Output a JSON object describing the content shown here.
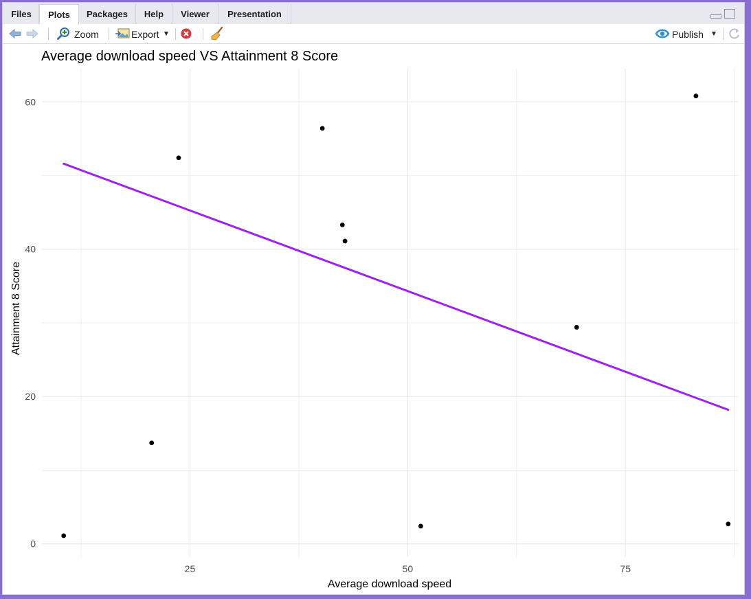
{
  "tabs": [
    {
      "label": "Files"
    },
    {
      "label": "Plots"
    },
    {
      "label": "Packages"
    },
    {
      "label": "Help"
    },
    {
      "label": "Viewer"
    },
    {
      "label": "Presentation"
    }
  ],
  "toolbar": {
    "zoom_label": "Zoom",
    "export_label": "Export",
    "publish_label": "Publish"
  },
  "icons": {
    "back": "back-arrow-icon",
    "forward": "forward-arrow-icon",
    "zoom": "zoom-icon",
    "export": "export-image-icon",
    "remove": "remove-plot-icon",
    "clear": "broom-icon",
    "publish": "publish-icon",
    "refresh": "refresh-icon"
  },
  "chart_data": {
    "type": "scatter",
    "title": "Average download speed VS Attainment 8 Score",
    "xlabel": "Average download speed",
    "ylabel": "Attainment 8 Score",
    "xlim": [
      8,
      88
    ],
    "ylim": [
      -1.8,
      64.5
    ],
    "x_ticks": [
      25,
      50,
      75
    ],
    "y_ticks": [
      0,
      20,
      40,
      60
    ],
    "grid": true,
    "points": [
      {
        "x": 10.5,
        "y": 1.1
      },
      {
        "x": 20.6,
        "y": 13.7
      },
      {
        "x": 23.7,
        "y": 52.4
      },
      {
        "x": 40.2,
        "y": 56.4
      },
      {
        "x": 42.5,
        "y": 43.3
      },
      {
        "x": 42.8,
        "y": 41.1
      },
      {
        "x": 51.5,
        "y": 2.4
      },
      {
        "x": 69.4,
        "y": 29.4
      },
      {
        "x": 83.1,
        "y": 60.8
      },
      {
        "x": 86.8,
        "y": 2.7
      }
    ],
    "trend_line": {
      "x": [
        10.5,
        86.8
      ],
      "y": [
        51.6,
        18.2
      ],
      "color": "#a020f0"
    },
    "point_color": "#000000",
    "grid_color": "#ebebeb",
    "text_color": "#4d4d4d"
  }
}
